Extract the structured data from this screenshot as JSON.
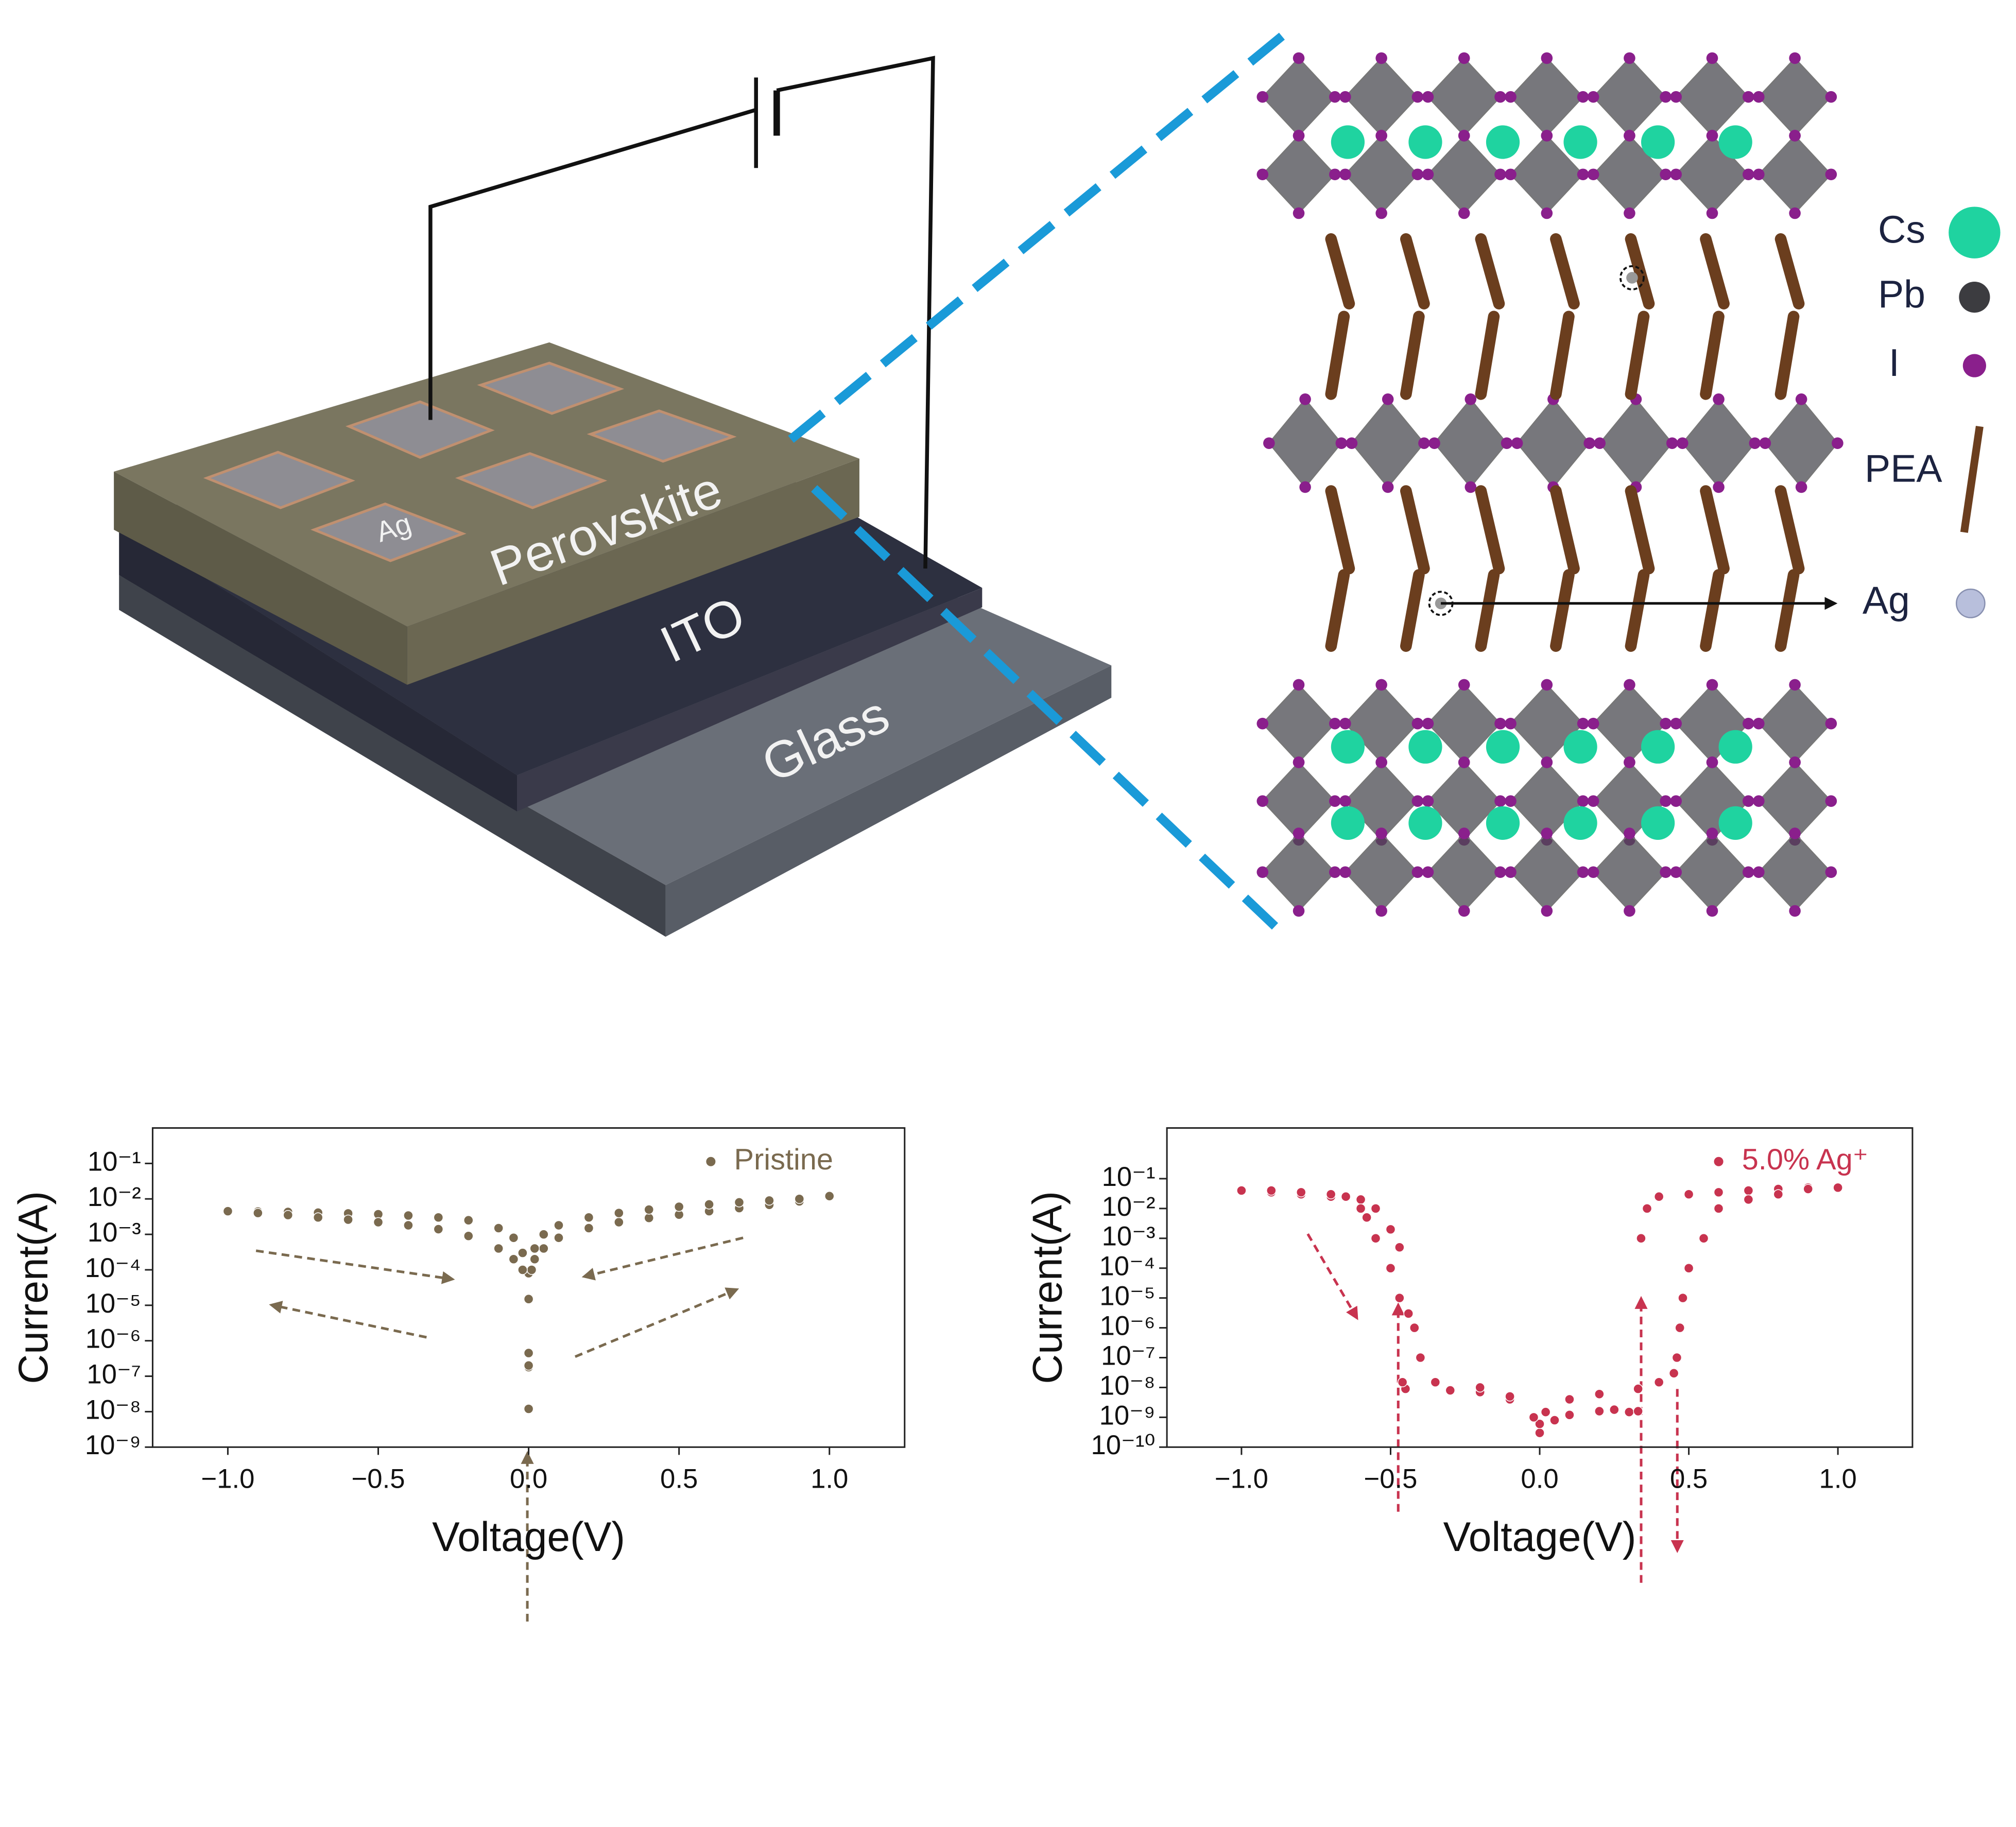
{
  "diagram": {
    "electrode": "Ag",
    "perovskite": "Perovskite",
    "ito": "ITO",
    "glass": "Glass",
    "legend": [
      "Cs",
      "Pb",
      "I",
      "PEA",
      "Ag"
    ]
  },
  "chart_data": [
    {
      "type": "scatter",
      "xlabel": "Voltage(V)",
      "ylabel": "Current(A)",
      "yscale": "log",
      "legend": "upper right",
      "xlim": [
        -1.25,
        1.25
      ],
      "ylim": [
        1e-09,
        1
      ],
      "xticks": [
        {
          "value": -1,
          "label": "−1.0"
        },
        {
          "value": -0.5,
          "label": "−0.5"
        },
        {
          "value": 0,
          "label": "0.0"
        },
        0.5,
        {
          "value": 1,
          "label": "1.0"
        }
      ],
      "yticks": [
        {
          "value": 1e-09,
          "label": "10⁻⁹"
        },
        {
          "value": 1e-08,
          "label": "10⁻⁸"
        },
        {
          "value": 1e-07,
          "label": "10⁻⁷"
        },
        {
          "value": 1e-06,
          "label": "10⁻⁶"
        },
        {
          "value": 1e-05,
          "label": "10⁻⁵"
        },
        {
          "value": 0.0001,
          "label": "10⁻⁴"
        },
        {
          "value": 0.001,
          "label": "10⁻³"
        },
        {
          "value": 0.01,
          "label": "10⁻²"
        },
        {
          "value": 0.1,
          "label": "10⁻¹"
        }
      ],
      "x": [
        0,
        0,
        0,
        0,
        0,
        0,
        0.01,
        0.02,
        0.05,
        0.1,
        0.2,
        0.3,
        0.4,
        0.5,
        0.6,
        0.7,
        0.8,
        0.9,
        1.0,
        0.9,
        0.8,
        0.7,
        0.6,
        0.5,
        0.4,
        0.3,
        0.2,
        0.1,
        0.05,
        0.02,
        -0.02,
        -0.05,
        -0.1,
        -0.2,
        -0.3,
        -0.4,
        -0.5,
        -0.6,
        -0.7,
        -0.8,
        -0.9,
        -1.0,
        -0.9,
        -0.8,
        -0.7,
        -0.6,
        -0.5,
        -0.4,
        -0.3,
        -0.2,
        -0.1,
        -0.05,
        -0.02
      ],
      "series": [
        {
          "name": "Pristine",
          "color": "#7a6a4f",
          "values": [
            1.2e-08,
            1.8e-07,
            2e-07,
            4.5e-07,
            1.5e-05,
            8e-05,
            0.0001,
            0.0002,
            0.0004,
            0.0008,
            0.0015,
            0.0022,
            0.0029,
            0.0036,
            0.0045,
            0.0055,
            0.0068,
            0.0085,
            0.012,
            0.01,
            0.009,
            0.008,
            0.007,
            0.006,
            0.005,
            0.004,
            0.003,
            0.0018,
            0.001,
            0.0004,
            0.0003,
            0.0008,
            0.0015,
            0.0025,
            0.003,
            0.0034,
            0.0037,
            0.0039,
            0.0041,
            0.0043,
            0.0044,
            0.0045,
            0.004,
            0.0035,
            0.003,
            0.0026,
            0.0022,
            0.0018,
            0.0014,
            0.0009,
            0.0004,
            0.0002,
            0.0001
          ]
        }
      ]
    },
    {
      "type": "scatter",
      "xlabel": "Voltage(V)",
      "ylabel": "Current(A)",
      "yscale": "log",
      "legend": "upper right",
      "xlim": [
        -1.25,
        1.25
      ],
      "ylim": [
        1e-10,
        5
      ],
      "xticks": [
        {
          "value": -1,
          "label": "−1.0"
        },
        {
          "value": -0.5,
          "label": "−0.5"
        },
        {
          "value": 0,
          "label": "0.0"
        },
        0.5,
        {
          "value": 1,
          "label": "1.0"
        }
      ],
      "yticks": [
        {
          "value": 1e-10,
          "label": "10⁻¹⁰"
        },
        {
          "value": 1e-09,
          "label": "10⁻⁹"
        },
        {
          "value": 1e-08,
          "label": "10⁻⁸"
        },
        {
          "value": 1e-07,
          "label": "10⁻⁷"
        },
        {
          "value": 1e-06,
          "label": "10⁻⁶"
        },
        {
          "value": 1e-05,
          "label": "10⁻⁵"
        },
        {
          "value": 0.0001,
          "label": "10⁻⁴"
        },
        {
          "value": 0.001,
          "label": "10⁻³"
        },
        {
          "value": 0.01,
          "label": "10⁻²"
        },
        {
          "value": 0.1,
          "label": "10⁻¹"
        }
      ],
      "x": [
        0,
        0.05,
        0.1,
        0.2,
        0.25,
        0.3,
        0.33,
        0.34,
        0.36,
        0.4,
        0.5,
        0.6,
        0.7,
        0.8,
        0.9,
        1.0,
        0.9,
        0.8,
        0.7,
        0.6,
        0.55,
        0.5,
        0.48,
        0.47,
        0.46,
        0.45,
        0.4,
        0.33,
        0.2,
        0.1,
        0.02,
        0,
        -0.02,
        -0.1,
        -0.2,
        -0.3,
        -0.45,
        -0.46,
        -0.47,
        -0.5,
        -0.55,
        -0.6,
        -0.7,
        -0.8,
        -0.9,
        -1.0,
        -0.9,
        -0.8,
        -0.7,
        -0.65,
        -0.6,
        -0.58,
        -0.55,
        -0.5,
        -0.47,
        -0.44,
        -0.42,
        -0.4,
        -0.35,
        -0.2,
        -0.1,
        -0.02
      ],
      "series": [
        {
          "name": "5.0% Ag⁺",
          "color": "#c8334f",
          "values": [
            3e-10,
            8e-10,
            1.2e-09,
            1.6e-09,
            1.8e-09,
            1.5e-09,
            1.6e-09,
            0.001,
            0.01,
            0.025,
            0.03,
            0.035,
            0.04,
            0.045,
            0.05,
            0.05,
            0.045,
            0.03,
            0.02,
            0.01,
            0.001,
            0.0001,
            1e-05,
            1e-06,
            1e-07,
            3e-08,
            1.5e-08,
            9e-09,
            6e-09,
            4e-09,
            1.5e-09,
            6e-10,
            1e-09,
            4e-09,
            7e-09,
            8e-09,
            9e-09,
            1.5e-08,
            0.0005,
            0.002,
            0.01,
            0.02,
            0.025,
            0.03,
            0.035,
            0.04,
            0.04,
            0.035,
            0.03,
            0.025,
            0.01,
            0.005,
            0.001,
            0.0001,
            1e-05,
            3e-06,
            1e-06,
            1e-07,
            1.5e-08,
            1e-08,
            5e-09,
            1e-09
          ]
        }
      ]
    }
  ]
}
